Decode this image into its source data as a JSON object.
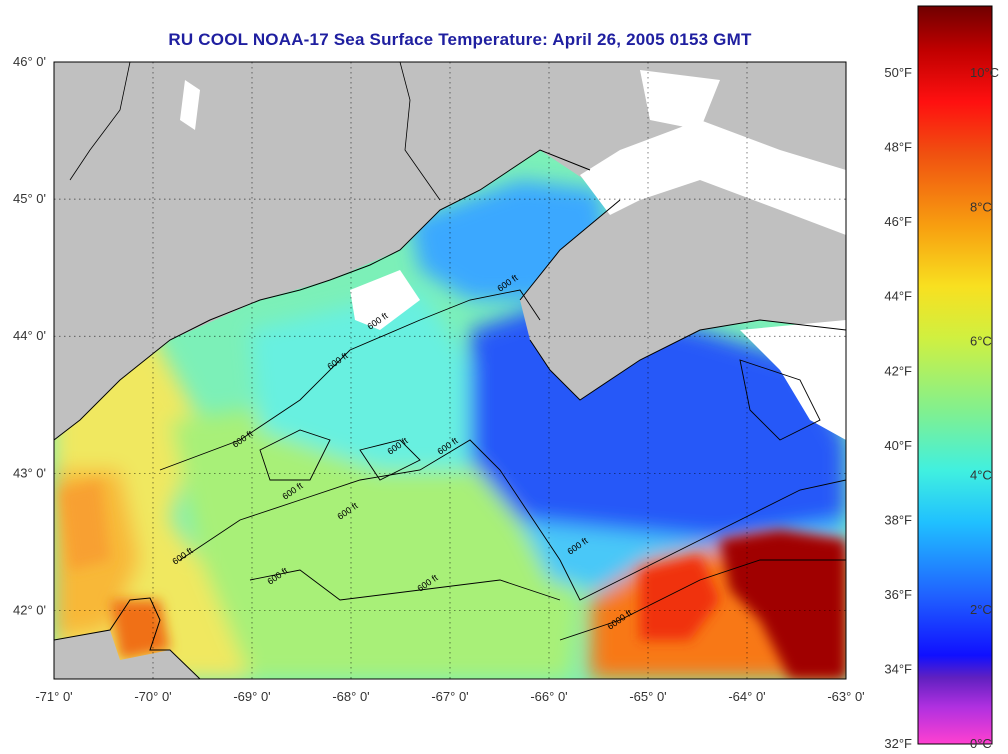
{
  "title": "RU COOL  NOAA-17  Sea Surface Temperature:  April 26, 2005 0153 GMT",
  "map": {
    "lon_range": [
      -71,
      -63
    ],
    "lat_range": [
      41.5,
      46
    ],
    "lon_ticks": [
      "-71° 0'",
      "-70° 0'",
      "-69° 0'",
      "-68° 0'",
      "-67° 0'",
      "-66° 0'",
      "-65° 0'",
      "-64° 0'",
      "-63° 0'"
    ],
    "lat_ticks": [
      "46° 0'",
      "45° 0'",
      "44° 0'",
      "43° 0'",
      "42° 0'"
    ],
    "contour_labels": [
      "600 ft",
      "600 ft",
      "600 ft",
      "600 ft",
      "600 ft",
      "600 ft",
      "600 ft",
      "600 ft",
      "600 ft",
      "600 ft",
      "600 ft",
      "600 ft",
      "6000 ft"
    ],
    "colors": {
      "land": "#c0c0c0",
      "warm_core": "#8b0000",
      "cold_shelf": "#2255ff",
      "mid_water": "#50e0d0",
      "coastal_warm": "#f0e040"
    }
  },
  "colorbar": {
    "fahrenheit_labels": [
      "50°F",
      "48°F",
      "46°F",
      "44°F",
      "42°F",
      "40°F",
      "38°F",
      "36°F",
      "34°F",
      "32°F"
    ],
    "celsius_labels": [
      "10°C",
      "8°C",
      "6°C",
      "4°C",
      "2°C",
      "0°C"
    ],
    "range_c": [
      0,
      11
    ]
  }
}
